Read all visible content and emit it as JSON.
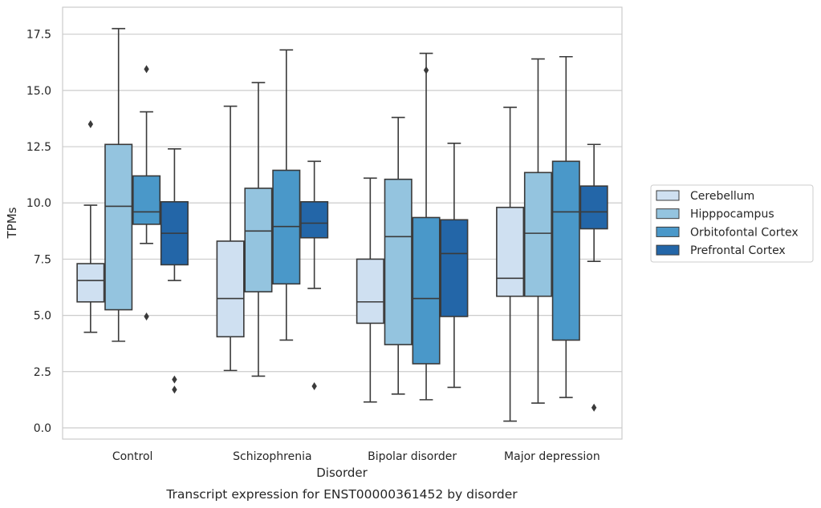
{
  "chart_data": {
    "type": "boxplot",
    "title": "",
    "caption": "Transcript expression for ENST00000361452 by disorder",
    "xlabel": "Disorder",
    "ylabel": "TPMs",
    "ylim": [
      -0.5,
      18.7
    ],
    "yticks": [
      "0.0",
      "2.5",
      "5.0",
      "7.5",
      "10.0",
      "12.5",
      "15.0",
      "17.5"
    ],
    "grid": "horizontal",
    "legend_position": "right",
    "categories": [
      "Control",
      "Schizophrenia",
      "Bipolar disorder",
      "Major depression"
    ],
    "series": [
      {
        "name": "Cerebellum",
        "color": "#cfe0f1",
        "boxes": [
          {
            "whislo": 4.25,
            "q1": 5.6,
            "med": 6.55,
            "q3": 7.3,
            "whishi": 9.9,
            "fliers": [
              13.5
            ]
          },
          {
            "whislo": 2.55,
            "q1": 4.05,
            "med": 5.75,
            "q3": 8.3,
            "whishi": 14.3,
            "fliers": []
          },
          {
            "whislo": 1.15,
            "q1": 4.65,
            "med": 5.6,
            "q3": 7.5,
            "whishi": 11.1,
            "fliers": []
          },
          {
            "whislo": 0.3,
            "q1": 5.85,
            "med": 6.65,
            "q3": 9.8,
            "whishi": 14.25,
            "fliers": []
          }
        ]
      },
      {
        "name": "Hipppocampus",
        "color": "#94c4df",
        "boxes": [
          {
            "whislo": 3.85,
            "q1": 5.25,
            "med": 9.85,
            "q3": 12.6,
            "whishi": 17.75,
            "fliers": []
          },
          {
            "whislo": 2.3,
            "q1": 6.05,
            "med": 8.75,
            "q3": 10.65,
            "whishi": 15.35,
            "fliers": []
          },
          {
            "whislo": 1.5,
            "q1": 3.7,
            "med": 8.5,
            "q3": 11.05,
            "whishi": 13.8,
            "fliers": []
          },
          {
            "whislo": 1.1,
            "q1": 5.85,
            "med": 8.65,
            "q3": 11.35,
            "whishi": 16.4,
            "fliers": []
          }
        ]
      },
      {
        "name": "Orbitofontal Cortex",
        "color": "#4a98c9",
        "boxes": [
          {
            "whislo": 8.2,
            "q1": 9.05,
            "med": 9.6,
            "q3": 11.2,
            "whishi": 14.05,
            "fliers": [
              15.95,
              4.95
            ]
          },
          {
            "whislo": 3.9,
            "q1": 6.4,
            "med": 8.95,
            "q3": 11.45,
            "whishi": 16.8,
            "fliers": []
          },
          {
            "whislo": 1.25,
            "q1": 2.85,
            "med": 5.75,
            "q3": 9.35,
            "whishi": 16.65,
            "fliers": [
              15.9
            ]
          },
          {
            "whislo": 1.35,
            "q1": 3.9,
            "med": 9.6,
            "q3": 11.85,
            "whishi": 16.5,
            "fliers": []
          }
        ]
      },
      {
        "name": "Prefrontal Cortex",
        "color": "#2366a8",
        "boxes": [
          {
            "whislo": 6.55,
            "q1": 7.25,
            "med": 8.65,
            "q3": 10.05,
            "whishi": 12.4,
            "fliers": [
              2.15,
              1.7
            ]
          },
          {
            "whislo": 6.2,
            "q1": 8.45,
            "med": 9.1,
            "q3": 10.05,
            "whishi": 11.85,
            "fliers": [
              1.85
            ]
          },
          {
            "whislo": 1.8,
            "q1": 4.95,
            "med": 7.75,
            "q3": 9.25,
            "whishi": 12.65,
            "fliers": []
          },
          {
            "whislo": 7.4,
            "q1": 8.85,
            "med": 9.6,
            "q3": 10.75,
            "whishi": 12.6,
            "fliers": [
              0.9
            ]
          }
        ]
      }
    ]
  }
}
